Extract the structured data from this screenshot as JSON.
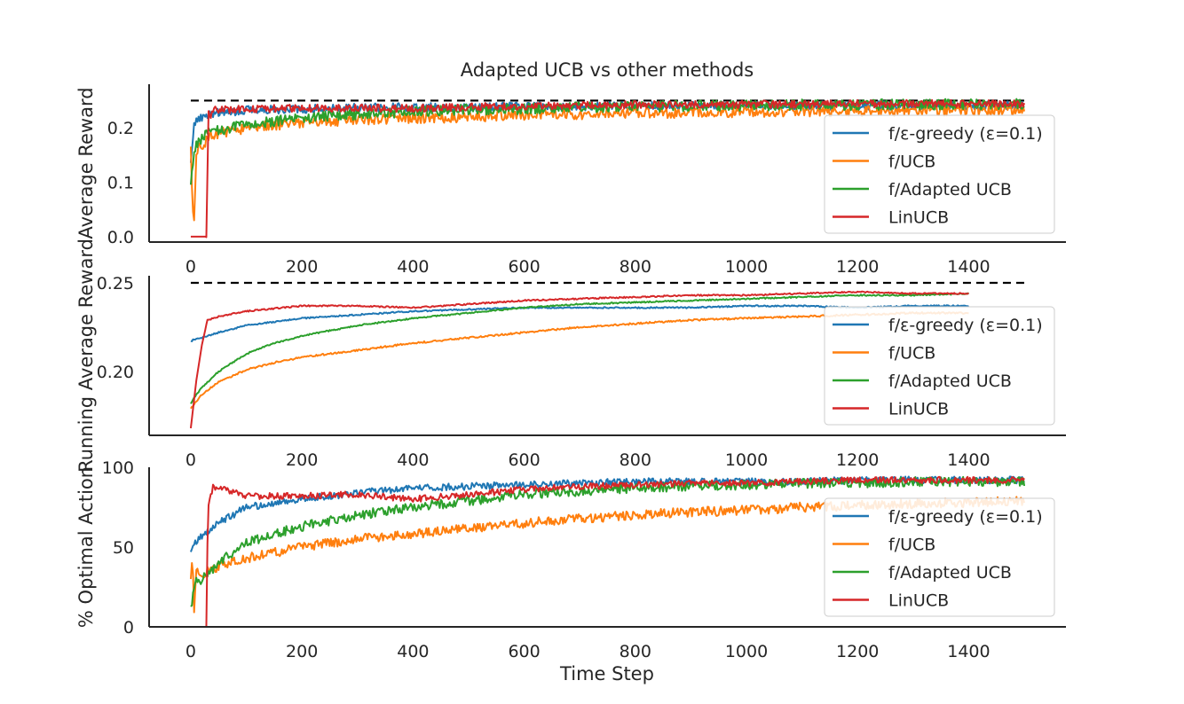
{
  "chart_data": {
    "title": "Adapted UCB vs other methods",
    "xlabel": "Time Step",
    "colors": {
      "f/ε-greedy (ε=0.1)": "#1f77b4",
      "f/UCB": "#ff7f0e",
      "f/Adapted UCB": "#2ca02c",
      "LinUCB": "#d62728",
      "optimal": "#000000"
    },
    "legend_placement": "lower-right",
    "grid": false,
    "subplots": [
      {
        "type": "line",
        "ylabel": "Average Reward",
        "xlim": [
          -75,
          1575
        ],
        "ylim": [
          -0.01,
          0.28
        ],
        "xticks": [
          0,
          200,
          400,
          600,
          800,
          1000,
          1200,
          1400
        ],
        "yticks": [
          0.0,
          0.1,
          0.2
        ],
        "ytick_labels": [
          "0.0",
          "0.1",
          "0.2"
        ],
        "reference_line": {
          "y": 0.25,
          "x": [
            0,
            1500
          ],
          "style": "dashed"
        },
        "series": [
          {
            "name": "f/ε-greedy (ε=0.1)",
            "x": [
              0,
              5,
              10,
              20,
              30,
              50,
              100,
              200,
              300,
              400,
              500,
              600,
              700,
              800,
              900,
              1000,
              1100,
              1200,
              1300,
              1400,
              1500
            ],
            "values": [
              0.14,
              0.2,
              0.21,
              0.22,
              0.225,
              0.228,
              0.232,
              0.235,
              0.237,
              0.238,
              0.238,
              0.239,
              0.239,
              0.24,
              0.24,
              0.24,
              0.24,
              0.241,
              0.241,
              0.241,
              0.241
            ],
            "noise": 0.008
          },
          {
            "name": "f/UCB",
            "x": [
              0,
              3,
              6,
              10,
              15,
              20,
              30,
              50,
              100,
              150,
              200,
              300,
              400,
              500,
              600,
              700,
              800,
              900,
              1000,
              1100,
              1200,
              1300,
              1400,
              1500
            ],
            "values": [
              0.16,
              0.05,
              0.02,
              0.15,
              0.17,
              0.16,
              0.18,
              0.19,
              0.2,
              0.205,
              0.21,
              0.215,
              0.218,
              0.22,
              0.223,
              0.225,
              0.227,
              0.228,
              0.229,
              0.23,
              0.231,
              0.232,
              0.232,
              0.233
            ],
            "noise": 0.01
          },
          {
            "name": "f/Adapted UCB",
            "x": [
              0,
              5,
              10,
              20,
              30,
              50,
              100,
              150,
              200,
              300,
              400,
              500,
              600,
              700,
              800,
              900,
              1000,
              1100,
              1200,
              1300,
              1400,
              1500
            ],
            "values": [
              0.1,
              0.15,
              0.17,
              0.18,
              0.19,
              0.195,
              0.205,
              0.212,
              0.217,
              0.225,
              0.23,
              0.233,
              0.235,
              0.237,
              0.239,
              0.24,
              0.241,
              0.242,
              0.242,
              0.243,
              0.243,
              0.243
            ],
            "noise": 0.01
          },
          {
            "name": "LinUCB",
            "x": [
              0,
              28,
              29,
              32,
              36,
              40,
              60,
              100,
              200,
              300,
              400,
              500,
              600,
              700,
              800,
              900,
              1000,
              1100,
              1200,
              1300,
              1400,
              1500
            ],
            "values": [
              0.0,
              0.0,
              0.07,
              0.23,
              0.22,
              0.232,
              0.233,
              0.235,
              0.236,
              0.236,
              0.236,
              0.238,
              0.24,
              0.241,
              0.242,
              0.242,
              0.243,
              0.243,
              0.244,
              0.244,
              0.244,
              0.244
            ],
            "noise": 0.007
          }
        ]
      },
      {
        "type": "line",
        "ylabel": "Running Average Reward",
        "xlim": [
          -75,
          1575
        ],
        "ylim": [
          0.164,
          0.254
        ],
        "xticks": [
          0,
          200,
          400,
          600,
          800,
          1000,
          1200,
          1400
        ],
        "yticks": [
          0.2,
          0.25
        ],
        "ytick_labels": [
          "0.20",
          "0.25"
        ],
        "reference_line": {
          "y": 0.25,
          "x": [
            0,
            1500
          ],
          "style": "dashed"
        },
        "series": [
          {
            "name": "f/ε-greedy (ε=0.1)",
            "x": [
              0,
              5,
              20,
              50,
              100,
              150,
              200,
              300,
              400,
              500,
              600,
              700,
              800,
              900,
              1000,
              1100,
              1200,
              1300,
              1400
            ],
            "values": [
              0.217,
              0.218,
              0.219,
              0.222,
              0.226,
              0.228,
              0.23,
              0.232,
              0.234,
              0.235,
              0.236,
              0.236,
              0.236,
              0.236,
              0.237,
              0.237,
              0.236,
              0.237,
              0.237
            ],
            "noise": 0.0004
          },
          {
            "name": "f/UCB",
            "x": [
              0,
              5,
              20,
              50,
              100,
              150,
              200,
              300,
              400,
              500,
              600,
              700,
              800,
              900,
              1000,
              1100,
              1200,
              1300,
              1400
            ],
            "values": [
              0.179,
              0.181,
              0.187,
              0.194,
              0.201,
              0.205,
              0.208,
              0.212,
              0.216,
              0.219,
              0.222,
              0.225,
              0.227,
              0.229,
              0.23,
              0.231,
              0.232,
              0.233,
              0.233
            ],
            "noise": 0.0005
          },
          {
            "name": "f/Adapted UCB",
            "x": [
              0,
              5,
              20,
              50,
              100,
              150,
              200,
              300,
              400,
              500,
              600,
              700,
              800,
              900,
              1000,
              1100,
              1200,
              1300,
              1400
            ],
            "values": [
              0.182,
              0.185,
              0.191,
              0.2,
              0.21,
              0.216,
              0.22,
              0.226,
              0.23,
              0.233,
              0.236,
              0.238,
              0.239,
              0.24,
              0.241,
              0.242,
              0.243,
              0.243,
              0.244
            ],
            "noise": 0.0004
          },
          {
            "name": "LinUCB",
            "x": [
              0,
              10,
              20,
              30,
              50,
              100,
              200,
              300,
              400,
              500,
              600,
              700,
              800,
              900,
              1000,
              1100,
              1200,
              1300,
              1400
            ],
            "values": [
              0.168,
              0.195,
              0.215,
              0.229,
              0.231,
              0.234,
              0.237,
              0.237,
              0.236,
              0.238,
              0.24,
              0.241,
              0.242,
              0.243,
              0.243,
              0.244,
              0.245,
              0.244,
              0.244
            ],
            "noise": 0.0004
          }
        ]
      },
      {
        "type": "line",
        "ylabel": "% Optimal Action",
        "xlim": [
          -75,
          1575
        ],
        "ylim": [
          0,
          100
        ],
        "xticks": [
          0,
          200,
          400,
          600,
          800,
          1000,
          1200,
          1400
        ],
        "yticks": [
          0,
          50,
          100
        ],
        "ytick_labels": [
          "0",
          "50",
          "100"
        ],
        "series": [
          {
            "name": "f/ε-greedy (ε=0.1)",
            "x": [
              0,
              5,
              20,
              50,
              100,
              200,
              300,
              400,
              500,
              600,
              700,
              800,
              900,
              1000,
              1100,
              1200,
              1300,
              1400,
              1500
            ],
            "values": [
              45,
              52,
              57,
              65,
              75,
              80,
              84,
              87,
              88,
              89,
              90,
              91,
              91,
              91,
              91,
              92,
              92,
              92,
              92
            ],
            "noise": 2.2
          },
          {
            "name": "f/UCB",
            "x": [
              0,
              3,
              6,
              10,
              20,
              50,
              100,
              200,
              300,
              400,
              500,
              600,
              700,
              800,
              900,
              1000,
              1100,
              1200,
              1300,
              1400,
              1500
            ],
            "values": [
              30,
              45,
              10,
              35,
              33,
              38,
              43,
              50,
              55,
              58,
              62,
              65,
              68,
              70,
              72,
              73,
              75,
              76,
              77,
              78,
              79
            ],
            "noise": 3.0
          },
          {
            "name": "f/Adapted UCB",
            "x": [
              0,
              5,
              10,
              20,
              50,
              100,
              200,
              300,
              400,
              500,
              600,
              700,
              800,
              900,
              1000,
              1100,
              1200,
              1300,
              1400,
              1500
            ],
            "values": [
              10,
              22,
              28,
              30,
              40,
              53,
              63,
              70,
              75,
              79,
              83,
              85,
              87,
              88,
              89,
              90,
              90,
              91,
              91,
              91
            ],
            "noise": 3.0
          },
          {
            "name": "LinUCB",
            "x": [
              0,
              28,
              29,
              32,
              40,
              60,
              100,
              200,
              300,
              400,
              500,
              600,
              700,
              800,
              900,
              1000,
              1100,
              1200,
              1300,
              1400,
              1500
            ],
            "values": [
              0,
              0,
              40,
              75,
              88,
              86,
              82,
              82,
              83,
              80,
              83,
              86,
              88,
              89,
              90,
              90,
              91,
              92,
              92,
              92,
              92
            ],
            "noise": 2.0
          }
        ]
      }
    ]
  }
}
